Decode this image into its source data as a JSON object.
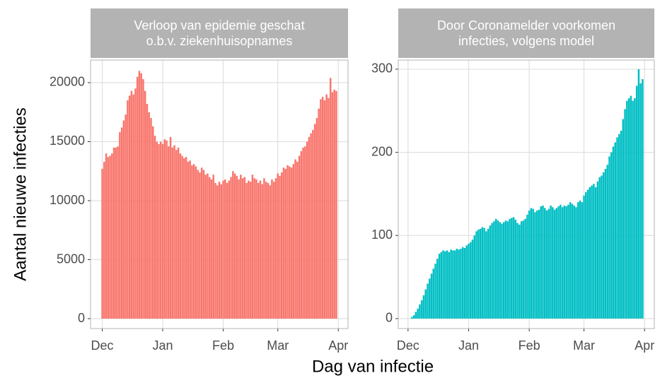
{
  "xlabel": "Dag van infectie",
  "ylabel": "Aantal nieuwe infecties",
  "chart_data": [
    {
      "type": "bar",
      "title": "Verloop van epidemie geschat\no.b.v. ziekenhuisopnames",
      "color": "#F8766D",
      "grid": true,
      "x": [
        0,
        1,
        2,
        3,
        4,
        5,
        6,
        7,
        8,
        9,
        10,
        11,
        12,
        13,
        14,
        15,
        16,
        17,
        18,
        19,
        20,
        21,
        22,
        23,
        24,
        25,
        26,
        27,
        28,
        29,
        30,
        31,
        32,
        33,
        34,
        35,
        36,
        37,
        38,
        39,
        40,
        41,
        42,
        43,
        44,
        45,
        46,
        47,
        48,
        49,
        50,
        51,
        52,
        53,
        54,
        55,
        56,
        57,
        58,
        59,
        60,
        61,
        62,
        63,
        64,
        65,
        66,
        67,
        68,
        69,
        70,
        71,
        72,
        73,
        74,
        75,
        76,
        77,
        78,
        79,
        80,
        81,
        82,
        83,
        84,
        85,
        86,
        87,
        88,
        89,
        90,
        91,
        92,
        93,
        94,
        95,
        96,
        97,
        98,
        99,
        100,
        101,
        102,
        103,
        104,
        105,
        106,
        107,
        108,
        109,
        110,
        111,
        112,
        113,
        114,
        115,
        116,
        117,
        118,
        119,
        120
      ],
      "values": [
        12700,
        13300,
        14000,
        13700,
        13800,
        14000,
        14500,
        14500,
        14600,
        15800,
        16200,
        16800,
        17300,
        18500,
        18900,
        19300,
        19000,
        19500,
        20500,
        21000,
        20800,
        20300,
        19300,
        18200,
        17500,
        17000,
        16300,
        15500,
        15000,
        14800,
        15000,
        14800,
        15200,
        15100,
        14600,
        15400,
        14500,
        14700,
        14300,
        14500,
        14000,
        13800,
        13600,
        13700,
        13300,
        13400,
        13000,
        13100,
        12900,
        12600,
        12400,
        12800,
        12600,
        12200,
        12300,
        12000,
        11800,
        12200,
        11500,
        11300,
        11600,
        11400,
        11700,
        11800,
        11500,
        11700,
        12000,
        12500,
        12300,
        12100,
        11800,
        12200,
        11900,
        12000,
        11500,
        11700,
        11600,
        12200,
        11900,
        11800,
        11500,
        11700,
        11400,
        11900,
        11600,
        11500,
        11300,
        11800,
        11600,
        11900,
        12300,
        12100,
        12400,
        12800,
        12700,
        13000,
        12900,
        12800,
        13100,
        13500,
        13300,
        13800,
        14200,
        14500,
        14600,
        15000,
        15400,
        15700,
        16000,
        16500,
        17000,
        17800,
        18600,
        18800,
        18500,
        19000,
        18700,
        20400,
        19200,
        19400,
        19300
      ],
      "xlim": [
        -6,
        126
      ],
      "xticks": [
        {
          "value": 0,
          "label": "Dec"
        },
        {
          "value": 31,
          "label": "Jan"
        },
        {
          "value": 62,
          "label": "Feb"
        },
        {
          "value": 90,
          "label": "Mar"
        },
        {
          "value": 121,
          "label": "Apr"
        }
      ],
      "ylim": [
        -838,
        21916
      ],
      "yticks": [
        0,
        5000,
        10000,
        15000,
        20000
      ]
    },
    {
      "type": "bar",
      "title": "Door Coronamelder voorkomen\ninfecties, volgens model",
      "color": "#00BFC4",
      "grid": true,
      "x": [
        0,
        1,
        2,
        3,
        4,
        5,
        6,
        7,
        8,
        9,
        10,
        11,
        12,
        13,
        14,
        15,
        16,
        17,
        18,
        19,
        20,
        21,
        22,
        23,
        24,
        25,
        26,
        27,
        28,
        29,
        30,
        31,
        32,
        33,
        34,
        35,
        36,
        37,
        38,
        39,
        40,
        41,
        42,
        43,
        44,
        45,
        46,
        47,
        48,
        49,
        50,
        51,
        52,
        53,
        54,
        55,
        56,
        57,
        58,
        59,
        60,
        61,
        62,
        63,
        64,
        65,
        66,
        67,
        68,
        69,
        70,
        71,
        72,
        73,
        74,
        75,
        76,
        77,
        78,
        79,
        80,
        81,
        82,
        83,
        84,
        85,
        86,
        87,
        88,
        89,
        90,
        91,
        92,
        93,
        94,
        95,
        96,
        97,
        98,
        99,
        100,
        101,
        102,
        103,
        104,
        105,
        106,
        107,
        108,
        109,
        110,
        111,
        112,
        113,
        114,
        115,
        116,
        117,
        118,
        119,
        120
      ],
      "values": [
        0,
        0,
        2,
        4,
        8,
        12,
        17,
        22,
        28,
        35,
        42,
        48,
        54,
        60,
        66,
        72,
        78,
        80,
        82,
        81,
        82,
        80,
        83,
        82,
        82,
        84,
        83,
        84,
        86,
        85,
        88,
        90,
        92,
        95,
        100,
        105,
        107,
        108,
        110,
        109,
        105,
        108,
        112,
        115,
        117,
        120,
        118,
        116,
        114,
        116,
        118,
        117,
        120,
        121,
        122,
        119,
        115,
        113,
        117,
        118,
        120,
        125,
        130,
        133,
        132,
        128,
        130,
        131,
        135,
        136,
        133,
        130,
        132,
        136,
        134,
        131,
        133,
        135,
        137,
        134,
        136,
        135,
        137,
        140,
        138,
        136,
        134,
        140,
        142,
        140,
        148,
        152,
        155,
        158,
        160,
        162,
        158,
        165,
        170,
        172,
        176,
        180,
        185,
        195,
        200,
        207,
        212,
        218,
        222,
        226,
        240,
        252,
        262,
        265,
        268,
        262,
        265,
        280,
        300,
        283,
        288
      ],
      "xlim": [
        -5,
        126
      ],
      "xticks": [
        {
          "value": 0,
          "label": "Dec"
        },
        {
          "value": 31,
          "label": "Jan"
        },
        {
          "value": 62,
          "label": "Feb"
        },
        {
          "value": 90,
          "label": "Mar"
        },
        {
          "value": 121,
          "label": "Apr"
        }
      ],
      "ylim": [
        -12,
        311
      ],
      "yticks": [
        0,
        100,
        200,
        300
      ]
    }
  ]
}
